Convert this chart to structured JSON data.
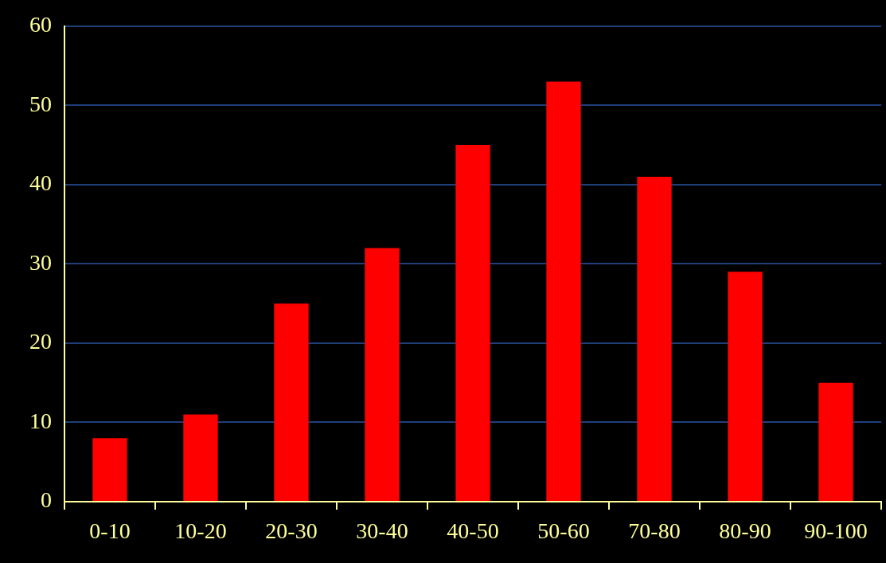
{
  "chart_data": {
    "type": "bar",
    "categories": [
      "0-10",
      "10-20",
      "20-30",
      "30-40",
      "40-50",
      "50-60",
      "70-80",
      "80-90",
      "90-100"
    ],
    "values": [
      8,
      11,
      25,
      32,
      45,
      53,
      41,
      29,
      15
    ],
    "color": "#ff0000",
    "ylim": [
      0,
      60
    ],
    "yticks": [
      0,
      10,
      20,
      30,
      40,
      50,
      60
    ],
    "grid": "y"
  }
}
